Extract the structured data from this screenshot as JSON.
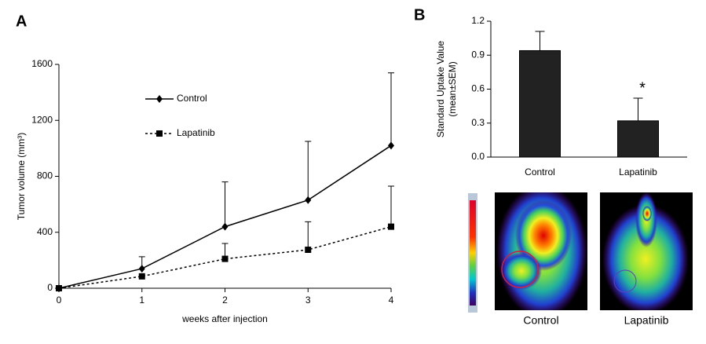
{
  "chart_data": [
    {
      "type": "line",
      "panel": "A",
      "xlabel": "weeks after injection",
      "ylabel": "Tumor volume (mm³)",
      "x": [
        0,
        1,
        2,
        3,
        4
      ],
      "xlim": [
        0,
        4
      ],
      "xticks": [
        0,
        1,
        2,
        3,
        4
      ],
      "ylim": [
        0,
        1600
      ],
      "yticks": [
        0,
        400,
        800,
        1200,
        1600
      ],
      "legend": "upper left",
      "series": [
        {
          "name": "Control",
          "color": "#000000",
          "line_style": "solid",
          "marker": "diamond",
          "values": [
            0,
            140,
            440,
            630,
            1020
          ],
          "errors": [
            null,
            85,
            320,
            420,
            520
          ]
        },
        {
          "name": "Lapatinib",
          "color": "#000000",
          "line_style": "dotted",
          "marker": "square",
          "values": [
            0,
            85,
            210,
            275,
            440
          ],
          "errors": [
            null,
            null,
            110,
            200,
            290
          ]
        }
      ]
    },
    {
      "type": "bar",
      "panel": "B",
      "ylabel": [
        "Standard Uptake Value",
        "(mean±SEM)"
      ],
      "categories": [
        "Control",
        "Lapatinib"
      ],
      "values": [
        0.94,
        0.32
      ],
      "errors": [
        0.17,
        0.2
      ],
      "color": "#222222",
      "ylim": [
        0,
        1.2
      ],
      "yticks": [
        {
          "value": 0,
          "label": "0.0"
        },
        0.3,
        0.6,
        0.9,
        1.2
      ],
      "annotation": "*"
    }
  ],
  "images": [
    {
      "label": "Control"
    },
    {
      "label": "Lapatinib"
    }
  ]
}
